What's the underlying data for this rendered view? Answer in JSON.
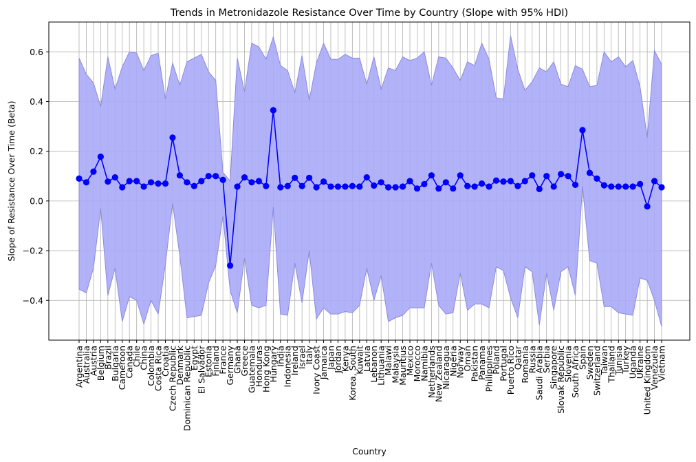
{
  "chart_data": {
    "type": "line",
    "title": "Trends in Metronidazole Resistance Over Time by Country (Slope with 95% HDI)",
    "xlabel": "Country",
    "ylabel": "Slope of Resistance Over Time (Beta)",
    "ylim": [
      -0.56,
      0.72
    ],
    "yticks": [
      -0.4,
      -0.2,
      0.0,
      0.2,
      0.4,
      0.6
    ],
    "ytick_labels": [
      "−0.4",
      "−0.2",
      "0.0",
      "0.2",
      "0.4",
      "0.6"
    ],
    "grid": true,
    "colors": {
      "line": "#0000ff",
      "band": "#aaaaf8",
      "band_edge": "#8a8ae0",
      "grid": "#b0b0b0"
    },
    "categories": [
      "Argentina",
      "Australia",
      "Austria",
      "Belgium",
      "Brazil",
      "Bulgaria",
      "Cameroon",
      "Canada",
      "Chile",
      "China",
      "Colombia",
      "Costa Rica",
      "Croatia",
      "Czech Republic",
      "Denmark",
      "Dominican Republic",
      "Egypt",
      "El Salvador",
      "Estonia",
      "Finland",
      "France",
      "Germany",
      "Ghana",
      "Greece",
      "Guatemala",
      "Honduras",
      "Hong Kong",
      "Hungary",
      "India",
      "Indonesia",
      "Ireland",
      "Israel",
      "Italy",
      "Ivory Coast",
      "Jamaica",
      "Japan",
      "Jordan",
      "Kenya",
      "Korea, South",
      "Kuwait",
      "Latvia",
      "Lebanon",
      "Lithuania",
      "Malawi",
      "Malaysia",
      "Mauritius",
      "Mexico",
      "Morocco",
      "Namibia",
      "Netherlands",
      "New Zealand",
      "Nicaragua",
      "Nigeria",
      "Norway",
      "Oman",
      "Pakistan",
      "Panama",
      "Philippines",
      "Poland",
      "Portugal",
      "Puerto Rico",
      "Qatar",
      "Romania",
      "Russia",
      "Saudi Arabia",
      "Serbia",
      "Singapore",
      "Slovak Republic",
      "Slovenia",
      "South Africa",
      "Spain",
      "Sweden",
      "Switzerland",
      "Taiwan",
      "Thailand",
      "Tunisia",
      "Turkey",
      "Uganda",
      "Ukraine",
      "United Kingdom",
      "Venezuela",
      "Vietnam"
    ],
    "series": [
      {
        "values": [
          0.09,
          0.075,
          0.118,
          0.178,
          0.078,
          0.095,
          0.055,
          0.08,
          0.08,
          0.058,
          0.075,
          0.07,
          0.07,
          0.255,
          0.103,
          0.075,
          0.06,
          0.08,
          0.1,
          0.1,
          0.085,
          -0.26,
          0.058,
          0.095,
          0.075,
          0.08,
          0.06,
          0.365,
          0.055,
          0.06,
          0.093,
          0.06,
          0.093,
          0.055,
          0.078,
          0.058,
          0.058,
          0.058,
          0.06,
          0.058,
          0.095,
          0.062,
          0.075,
          0.055,
          0.055,
          0.058,
          0.08,
          0.05,
          0.068,
          0.103,
          0.05,
          0.075,
          0.05,
          0.103,
          0.06,
          0.058,
          0.07,
          0.058,
          0.082,
          0.078,
          0.08,
          0.06,
          0.08,
          0.103,
          0.048,
          0.1,
          0.058,
          0.108,
          0.1,
          0.065,
          0.285,
          0.113,
          0.09,
          0.063,
          0.058,
          0.058,
          0.058,
          0.058,
          0.068,
          -0.022,
          0.08,
          0.055
        ],
        "hdi_low": [
          -0.355,
          -0.37,
          -0.27,
          -0.03,
          -0.38,
          -0.27,
          -0.485,
          -0.385,
          -0.4,
          -0.495,
          -0.4,
          -0.455,
          -0.255,
          -0.01,
          -0.22,
          -0.47,
          -0.465,
          -0.46,
          -0.33,
          -0.26,
          -0.06,
          -0.36,
          -0.45,
          -0.23,
          -0.42,
          -0.43,
          -0.42,
          -0.025,
          -0.455,
          -0.46,
          -0.25,
          -0.41,
          -0.2,
          -0.475,
          -0.43,
          -0.455,
          -0.455,
          -0.445,
          -0.45,
          -0.42,
          -0.27,
          -0.4,
          -0.3,
          -0.485,
          -0.47,
          -0.46,
          -0.43,
          -0.43,
          -0.43,
          -0.25,
          -0.42,
          -0.455,
          -0.45,
          -0.29,
          -0.44,
          -0.415,
          -0.415,
          -0.43,
          -0.265,
          -0.28,
          -0.39,
          -0.47,
          -0.265,
          -0.285,
          -0.5,
          -0.29,
          -0.44,
          -0.285,
          -0.265,
          -0.38,
          0.06,
          -0.24,
          -0.25,
          -0.425,
          -0.425,
          -0.45,
          -0.455,
          -0.46,
          -0.31,
          -0.32,
          -0.4,
          -0.505
        ],
        "hdi_high": [
          0.575,
          0.51,
          0.475,
          0.38,
          0.58,
          0.45,
          0.54,
          0.6,
          0.595,
          0.525,
          0.585,
          0.595,
          0.41,
          0.555,
          0.465,
          0.56,
          0.575,
          0.59,
          0.52,
          0.485,
          0.115,
          0.08,
          0.575,
          0.44,
          0.635,
          0.62,
          0.57,
          0.66,
          0.545,
          0.525,
          0.435,
          0.585,
          0.405,
          0.555,
          0.635,
          0.57,
          0.57,
          0.59,
          0.575,
          0.575,
          0.47,
          0.58,
          0.45,
          0.535,
          0.525,
          0.58,
          0.565,
          0.575,
          0.6,
          0.465,
          0.58,
          0.575,
          0.535,
          0.485,
          0.56,
          0.545,
          0.635,
          0.57,
          0.415,
          0.41,
          0.665,
          0.53,
          0.445,
          0.48,
          0.535,
          0.52,
          0.56,
          0.47,
          0.46,
          0.545,
          0.53,
          0.46,
          0.465,
          0.6,
          0.56,
          0.58,
          0.54,
          0.565,
          0.46,
          0.255,
          0.605,
          0.55
        ]
      }
    ]
  }
}
